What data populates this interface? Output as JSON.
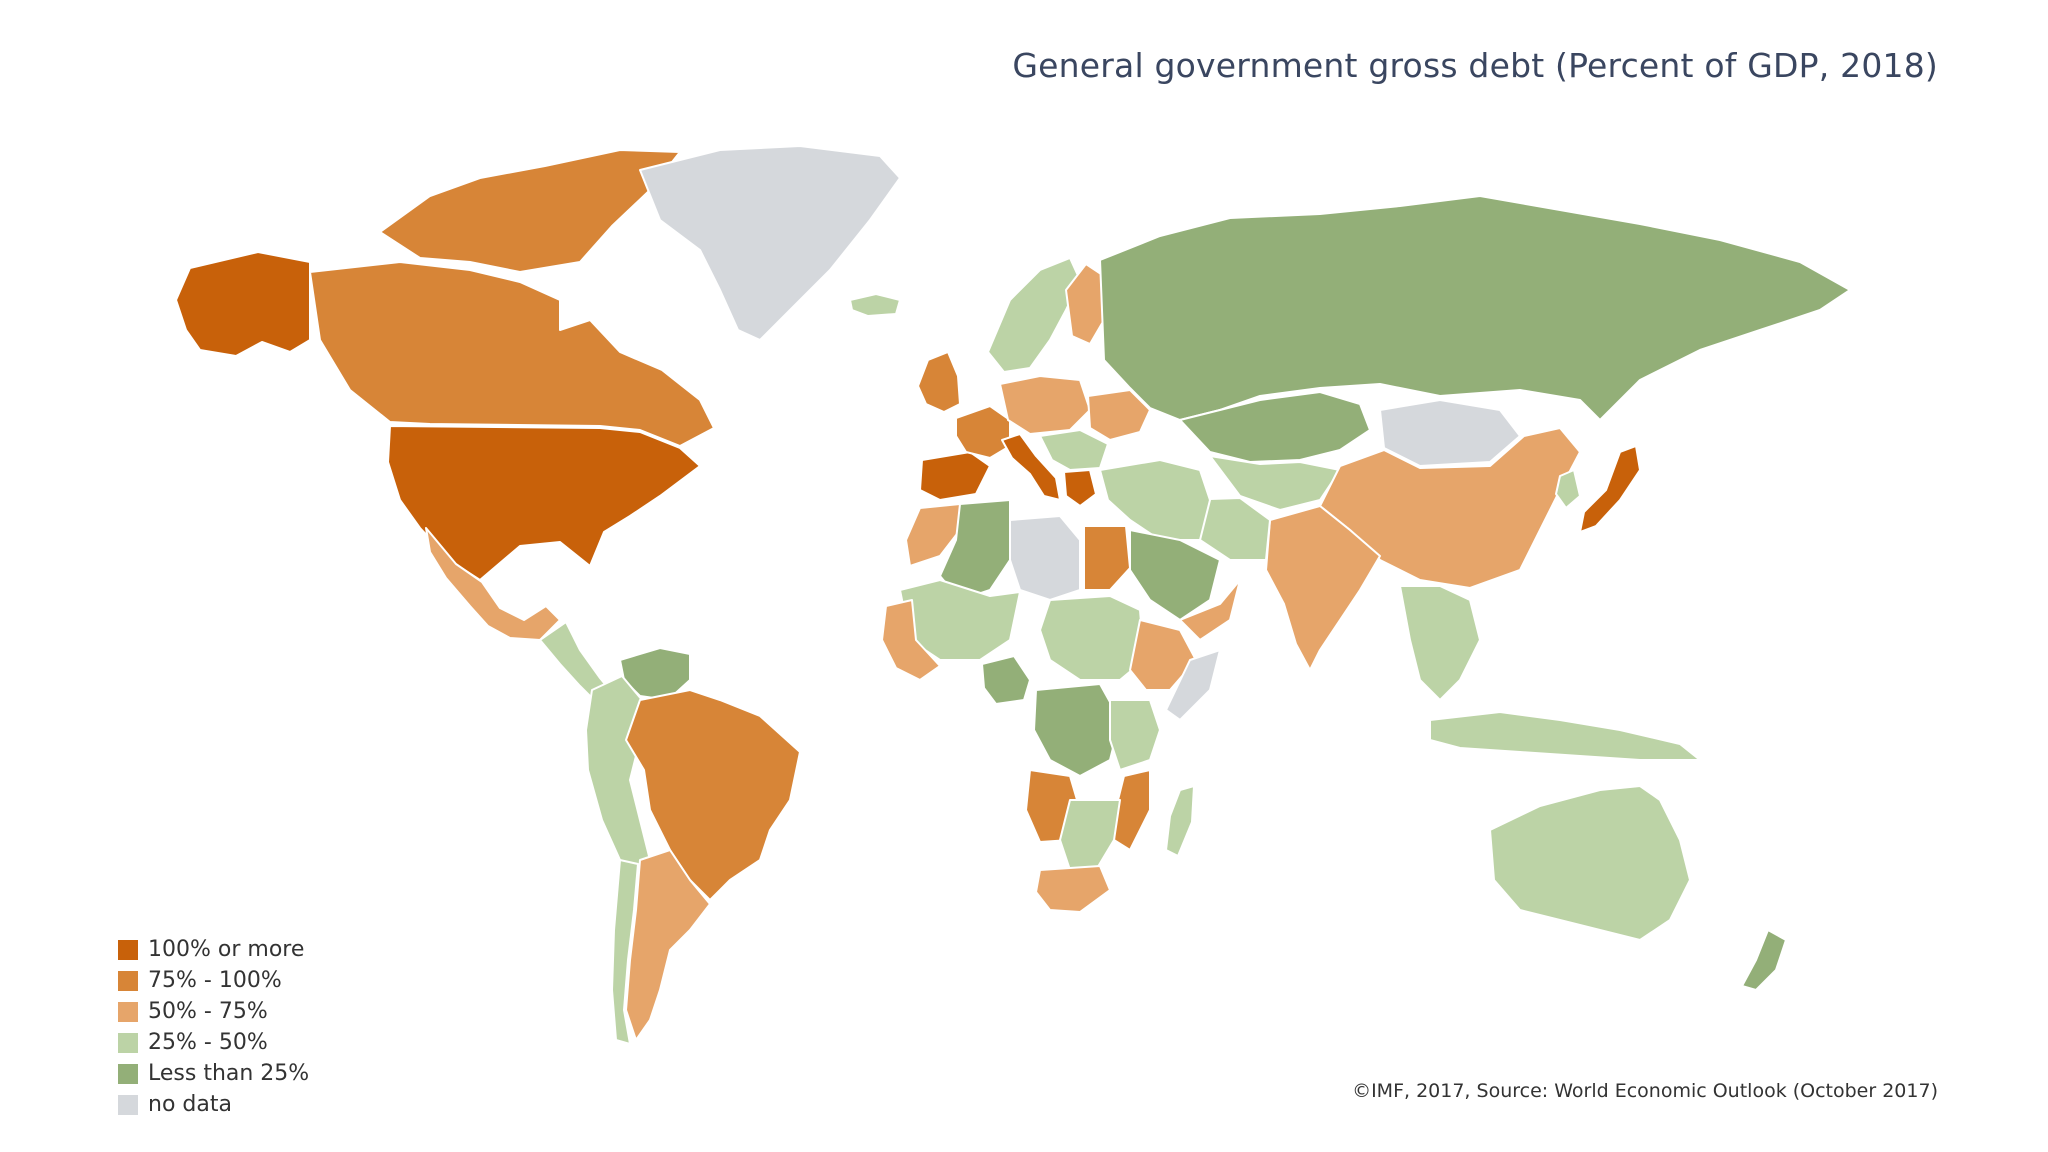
{
  "title": "General government gross debt (Percent of GDP, 2018)",
  "source": "©IMF, 2017, Source: World Economic Outlook (October 2017)",
  "legend": [
    {
      "label": "100% or more",
      "color": "#c8610a"
    },
    {
      "label": "75% - 100%",
      "color": "#d78537"
    },
    {
      "label": "50% - 75%",
      "color": "#e6a56a"
    },
    {
      "label": "25% - 50%",
      "color": "#bcd3a6"
    },
    {
      "label": "Less than 25%",
      "color": "#93af78"
    },
    {
      "label": "no data",
      "color": "#d5d8dc"
    }
  ],
  "regions": [
    {
      "name": "alaska",
      "category": 0
    },
    {
      "name": "canada",
      "category": 1
    },
    {
      "name": "canada-arctic",
      "category": 1
    },
    {
      "name": "usa",
      "category": 0
    },
    {
      "name": "mexico",
      "category": 2
    },
    {
      "name": "central-america",
      "category": 3
    },
    {
      "name": "greenland",
      "category": 5
    },
    {
      "name": "iceland",
      "category": 3
    },
    {
      "name": "venezuela",
      "category": 4
    },
    {
      "name": "colombia-andes",
      "category": 3
    },
    {
      "name": "brazil",
      "category": 1
    },
    {
      "name": "argentina",
      "category": 2
    },
    {
      "name": "chile",
      "category": 3
    },
    {
      "name": "uk-ireland",
      "category": 1
    },
    {
      "name": "iberia",
      "category": 0
    },
    {
      "name": "france",
      "category": 1
    },
    {
      "name": "italy",
      "category": 0
    },
    {
      "name": "scandinavia",
      "category": 3
    },
    {
      "name": "finland",
      "category": 2
    },
    {
      "name": "central-europe",
      "category": 2
    },
    {
      "name": "balkans",
      "category": 3
    },
    {
      "name": "greece",
      "category": 0
    },
    {
      "name": "ukraine",
      "category": 2
    },
    {
      "name": "russia",
      "category": 4
    },
    {
      "name": "kazakhstan",
      "category": 4
    },
    {
      "name": "central-asia",
      "category": 3
    },
    {
      "name": "mongolia",
      "category": 5
    },
    {
      "name": "china",
      "category": 2
    },
    {
      "name": "japan",
      "category": 0
    },
    {
      "name": "korea",
      "category": 3
    },
    {
      "name": "india",
      "category": 2
    },
    {
      "name": "south-asia-west",
      "category": 3
    },
    {
      "name": "middle-east",
      "category": 3
    },
    {
      "name": "saudi-arabia",
      "category": 4
    },
    {
      "name": "yemen-oman",
      "category": 2
    },
    {
      "name": "southeast-asia",
      "category": 3
    },
    {
      "name": "indonesia",
      "category": 3
    },
    {
      "name": "australia",
      "category": 3
    },
    {
      "name": "new-zealand",
      "category": 4
    },
    {
      "name": "north-africa-west",
      "category": 4
    },
    {
      "name": "morocco",
      "category": 2
    },
    {
      "name": "libya",
      "category": 5
    },
    {
      "name": "egypt",
      "category": 1
    },
    {
      "name": "sahel",
      "category": 3
    },
    {
      "name": "west-africa",
      "category": 2
    },
    {
      "name": "nigeria",
      "category": 4
    },
    {
      "name": "chad-sudan",
      "category": 3
    },
    {
      "name": "horn-of-africa",
      "category": 2
    },
    {
      "name": "somalia",
      "category": 5
    },
    {
      "name": "congo",
      "category": 4
    },
    {
      "name": "angola",
      "category": 1
    },
    {
      "name": "east-africa",
      "category": 3
    },
    {
      "name": "mozambique",
      "category": 1
    },
    {
      "name": "southern-africa",
      "category": 3
    },
    {
      "name": "south-africa",
      "category": 2
    },
    {
      "name": "madagascar",
      "category": 3
    }
  ]
}
